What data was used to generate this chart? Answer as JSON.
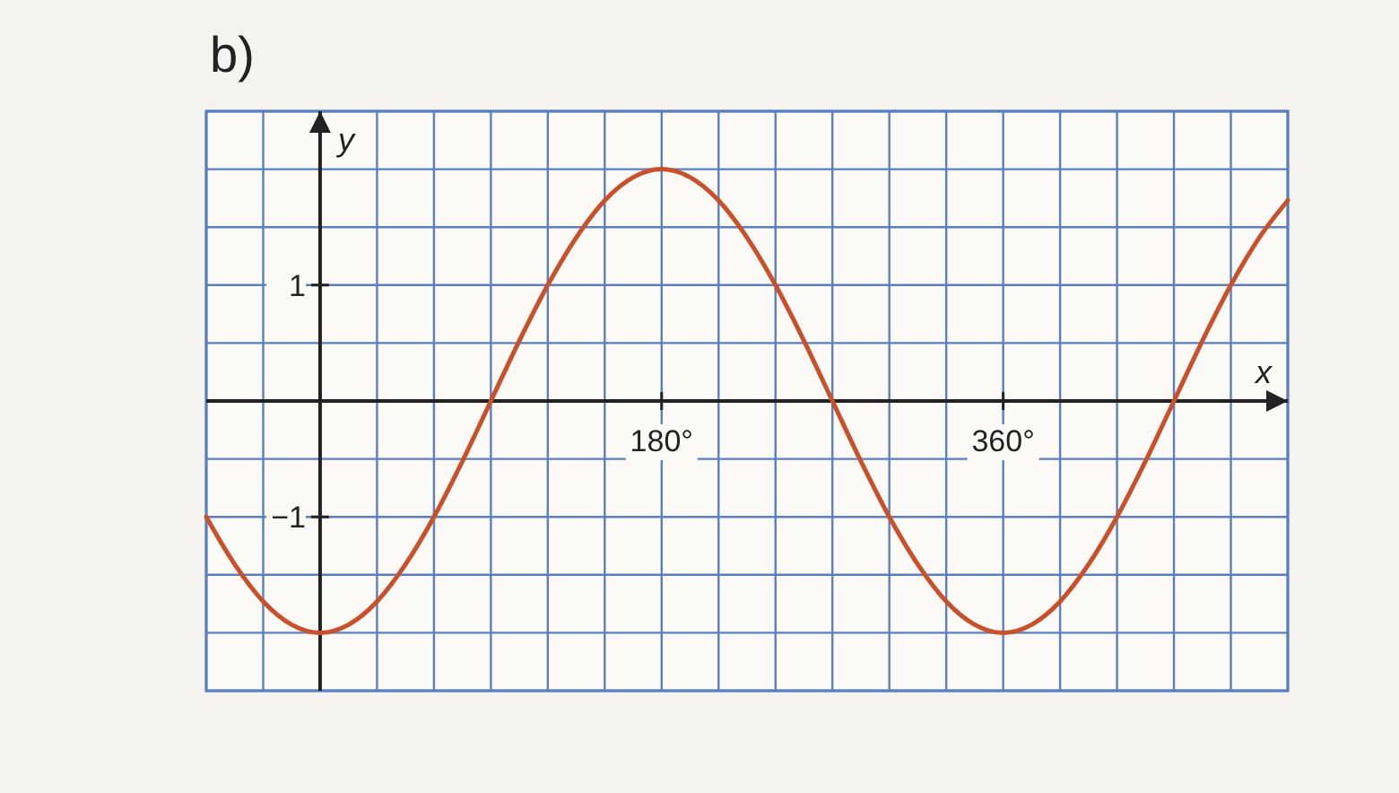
{
  "chart_data": {
    "type": "line",
    "title": "b)",
    "xlabel": "x",
    "ylabel": "y",
    "x": [
      -60,
      -45,
      -30,
      -15,
      0,
      15,
      30,
      45,
      60,
      75,
      90,
      105,
      120,
      135,
      150,
      165,
      180,
      195,
      210,
      225,
      240,
      255,
      270,
      285,
      300,
      315,
      330,
      345,
      360,
      375,
      390,
      405,
      420,
      435,
      450,
      465,
      480,
      495,
      510
    ],
    "series": [
      {
        "color": "#c8502a",
        "values": [
          -1,
          -1.41,
          -1.73,
          -1.93,
          -2,
          -1.93,
          -1.73,
          -1.41,
          -1,
          -0.52,
          0,
          0.52,
          1,
          1.41,
          1.73,
          1.93,
          2,
          1.93,
          1.73,
          1.41,
          1,
          0.52,
          0,
          -0.52,
          -1,
          -1.41,
          -1.73,
          -1.93,
          -2,
          -1.93,
          -1.73,
          -1.41,
          -1,
          -0.52,
          0,
          0.52,
          1,
          1.41,
          1.73
        ]
      }
    ],
    "xlim": [
      -60,
      510
    ],
    "ylim": [
      -2.5,
      2.5
    ],
    "xticks": [
      {
        "value": -60,
        "label": null
      },
      {
        "value": -30,
        "label": null
      },
      {
        "value": 0,
        "label": null
      },
      {
        "value": 30,
        "label": null
      },
      {
        "value": 60,
        "label": null
      },
      {
        "value": 90,
        "label": null
      },
      {
        "value": 120,
        "label": null
      },
      {
        "value": 150,
        "label": null
      },
      {
        "value": 180,
        "label": "180°"
      },
      {
        "value": 210,
        "label": null
      },
      {
        "value": 240,
        "label": null
      },
      {
        "value": 270,
        "label": null
      },
      {
        "value": 300,
        "label": null
      },
      {
        "value": 330,
        "label": null
      },
      {
        "value": 360,
        "label": "360°"
      },
      {
        "value": 390,
        "label": null
      },
      {
        "value": 420,
        "label": null
      },
      {
        "value": 450,
        "label": null
      },
      {
        "value": 480,
        "label": null
      },
      {
        "value": 510,
        "label": null
      }
    ],
    "yticks": [
      {
        "value": -2.5,
        "label": null
      },
      {
        "value": -2,
        "label": null
      },
      {
        "value": -1.5,
        "label": null
      },
      {
        "value": -1,
        "label": "−1"
      },
      {
        "value": -0.5,
        "label": null
      },
      {
        "value": 0,
        "label": null
      },
      {
        "value": 0.5,
        "label": null
      },
      {
        "value": 1,
        "label": "1"
      },
      {
        "value": 1.5,
        "label": null
      },
      {
        "value": 2,
        "label": null
      },
      {
        "value": 2.5,
        "label": null
      }
    ],
    "grid": true,
    "marker": "none",
    "line_style": "solid"
  }
}
